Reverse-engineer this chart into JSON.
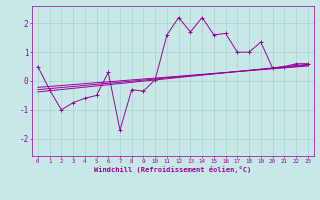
{
  "xlabel": "Windchill (Refroidissement éolien,°C)",
  "background_color": "#c8e8e8",
  "line_color": "#990099",
  "grid_color": "#a0cccc",
  "xlim": [
    -0.5,
    23.5
  ],
  "ylim": [
    -2.6,
    2.6
  ],
  "xticks": [
    0,
    1,
    2,
    3,
    4,
    5,
    6,
    7,
    8,
    9,
    10,
    11,
    12,
    13,
    14,
    15,
    16,
    17,
    18,
    19,
    20,
    21,
    22,
    23
  ],
  "yticks": [
    -2,
    -1,
    0,
    1,
    2
  ],
  "series1_y": [
    0.5,
    -0.3,
    -1.0,
    -0.75,
    -0.6,
    -0.5,
    0.3,
    -1.7,
    -0.3,
    -0.35,
    0.05,
    1.6,
    2.2,
    1.7,
    2.2,
    1.6,
    1.65,
    1.0,
    1.0,
    1.35,
    0.45,
    0.5,
    0.6,
    0.6
  ],
  "reg1": [
    -0.38,
    0.58
  ],
  "reg2": [
    -0.3,
    0.55
  ],
  "reg3": [
    -0.22,
    0.52
  ]
}
